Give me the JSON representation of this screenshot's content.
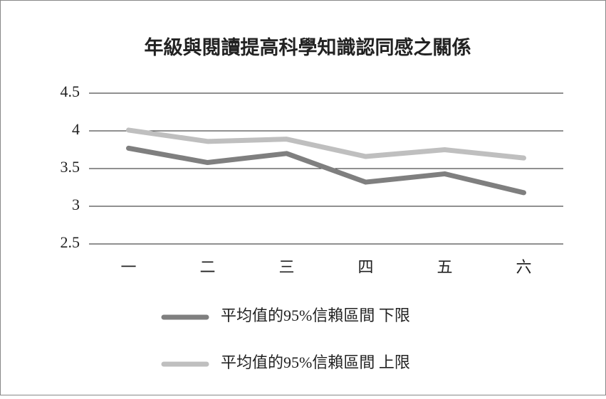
{
  "chart_data": {
    "type": "line",
    "title": "年級與閱讀提高科學知識認同感之關係",
    "categories": [
      "一",
      "二",
      "三",
      "四",
      "五",
      "六"
    ],
    "series": [
      {
        "name": "平均值的95%信賴區間 下限",
        "color": "#7f7f7f",
        "values": [
          3.77,
          3.58,
          3.7,
          3.32,
          3.43,
          3.18
        ]
      },
      {
        "name": "平均值的95%信賴區間 上限",
        "color": "#bfbfbf",
        "values": [
          4.01,
          3.86,
          3.89,
          3.66,
          3.75,
          3.64
        ]
      }
    ],
    "ylim": [
      2.5,
      4.5
    ],
    "yticks": [
      2.5,
      3,
      3.5,
      4,
      4.5
    ],
    "grid": true,
    "legend": "bottom"
  }
}
